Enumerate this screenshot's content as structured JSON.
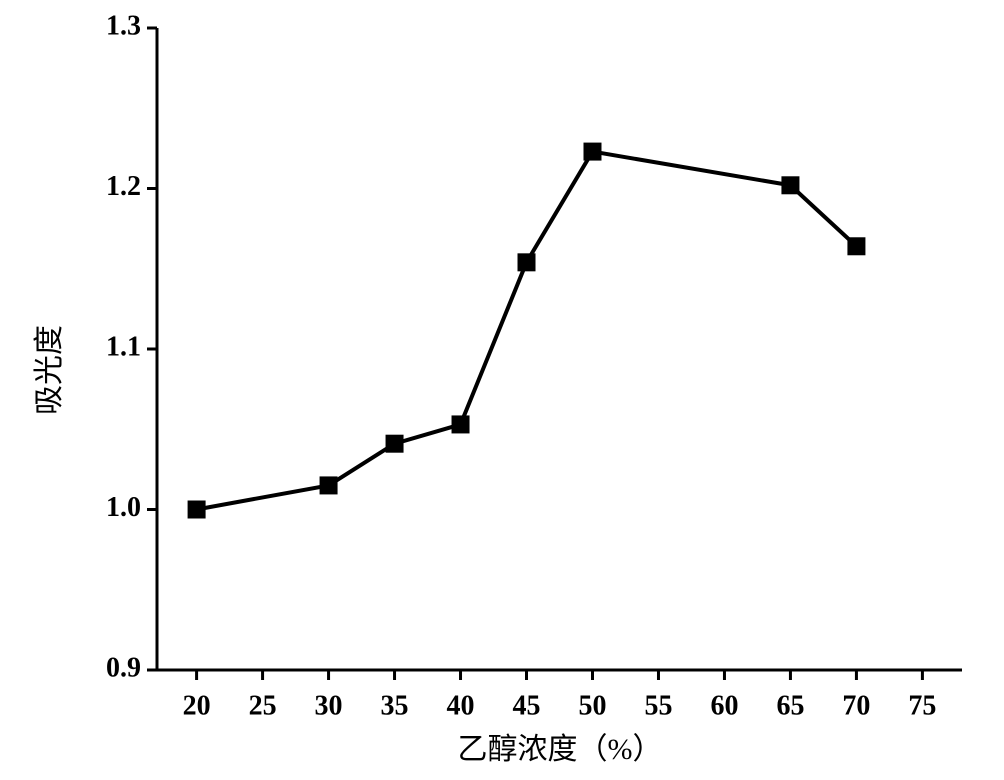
{
  "chart_data": {
    "type": "line",
    "x_label": "乙醇浓度（%）",
    "y_label": "吸光度",
    "x": [
      20,
      30,
      35,
      40,
      45,
      50,
      65,
      70
    ],
    "series": [
      {
        "color": "#000000",
        "values": [
          1.0,
          1.015,
          1.041,
          1.053,
          1.154,
          1.223,
          1.202,
          1.164
        ]
      }
    ],
    "xlim": [
      17,
      78
    ],
    "ylim": [
      0.9,
      1.3
    ],
    "xticks": [
      20,
      25,
      30,
      35,
      40,
      45,
      50,
      55,
      60,
      65,
      70,
      75
    ],
    "yticks": [
      0.9,
      {
        "value": 1,
        "label": "1.0"
      },
      1.1,
      1.2,
      1.3
    ]
  }
}
